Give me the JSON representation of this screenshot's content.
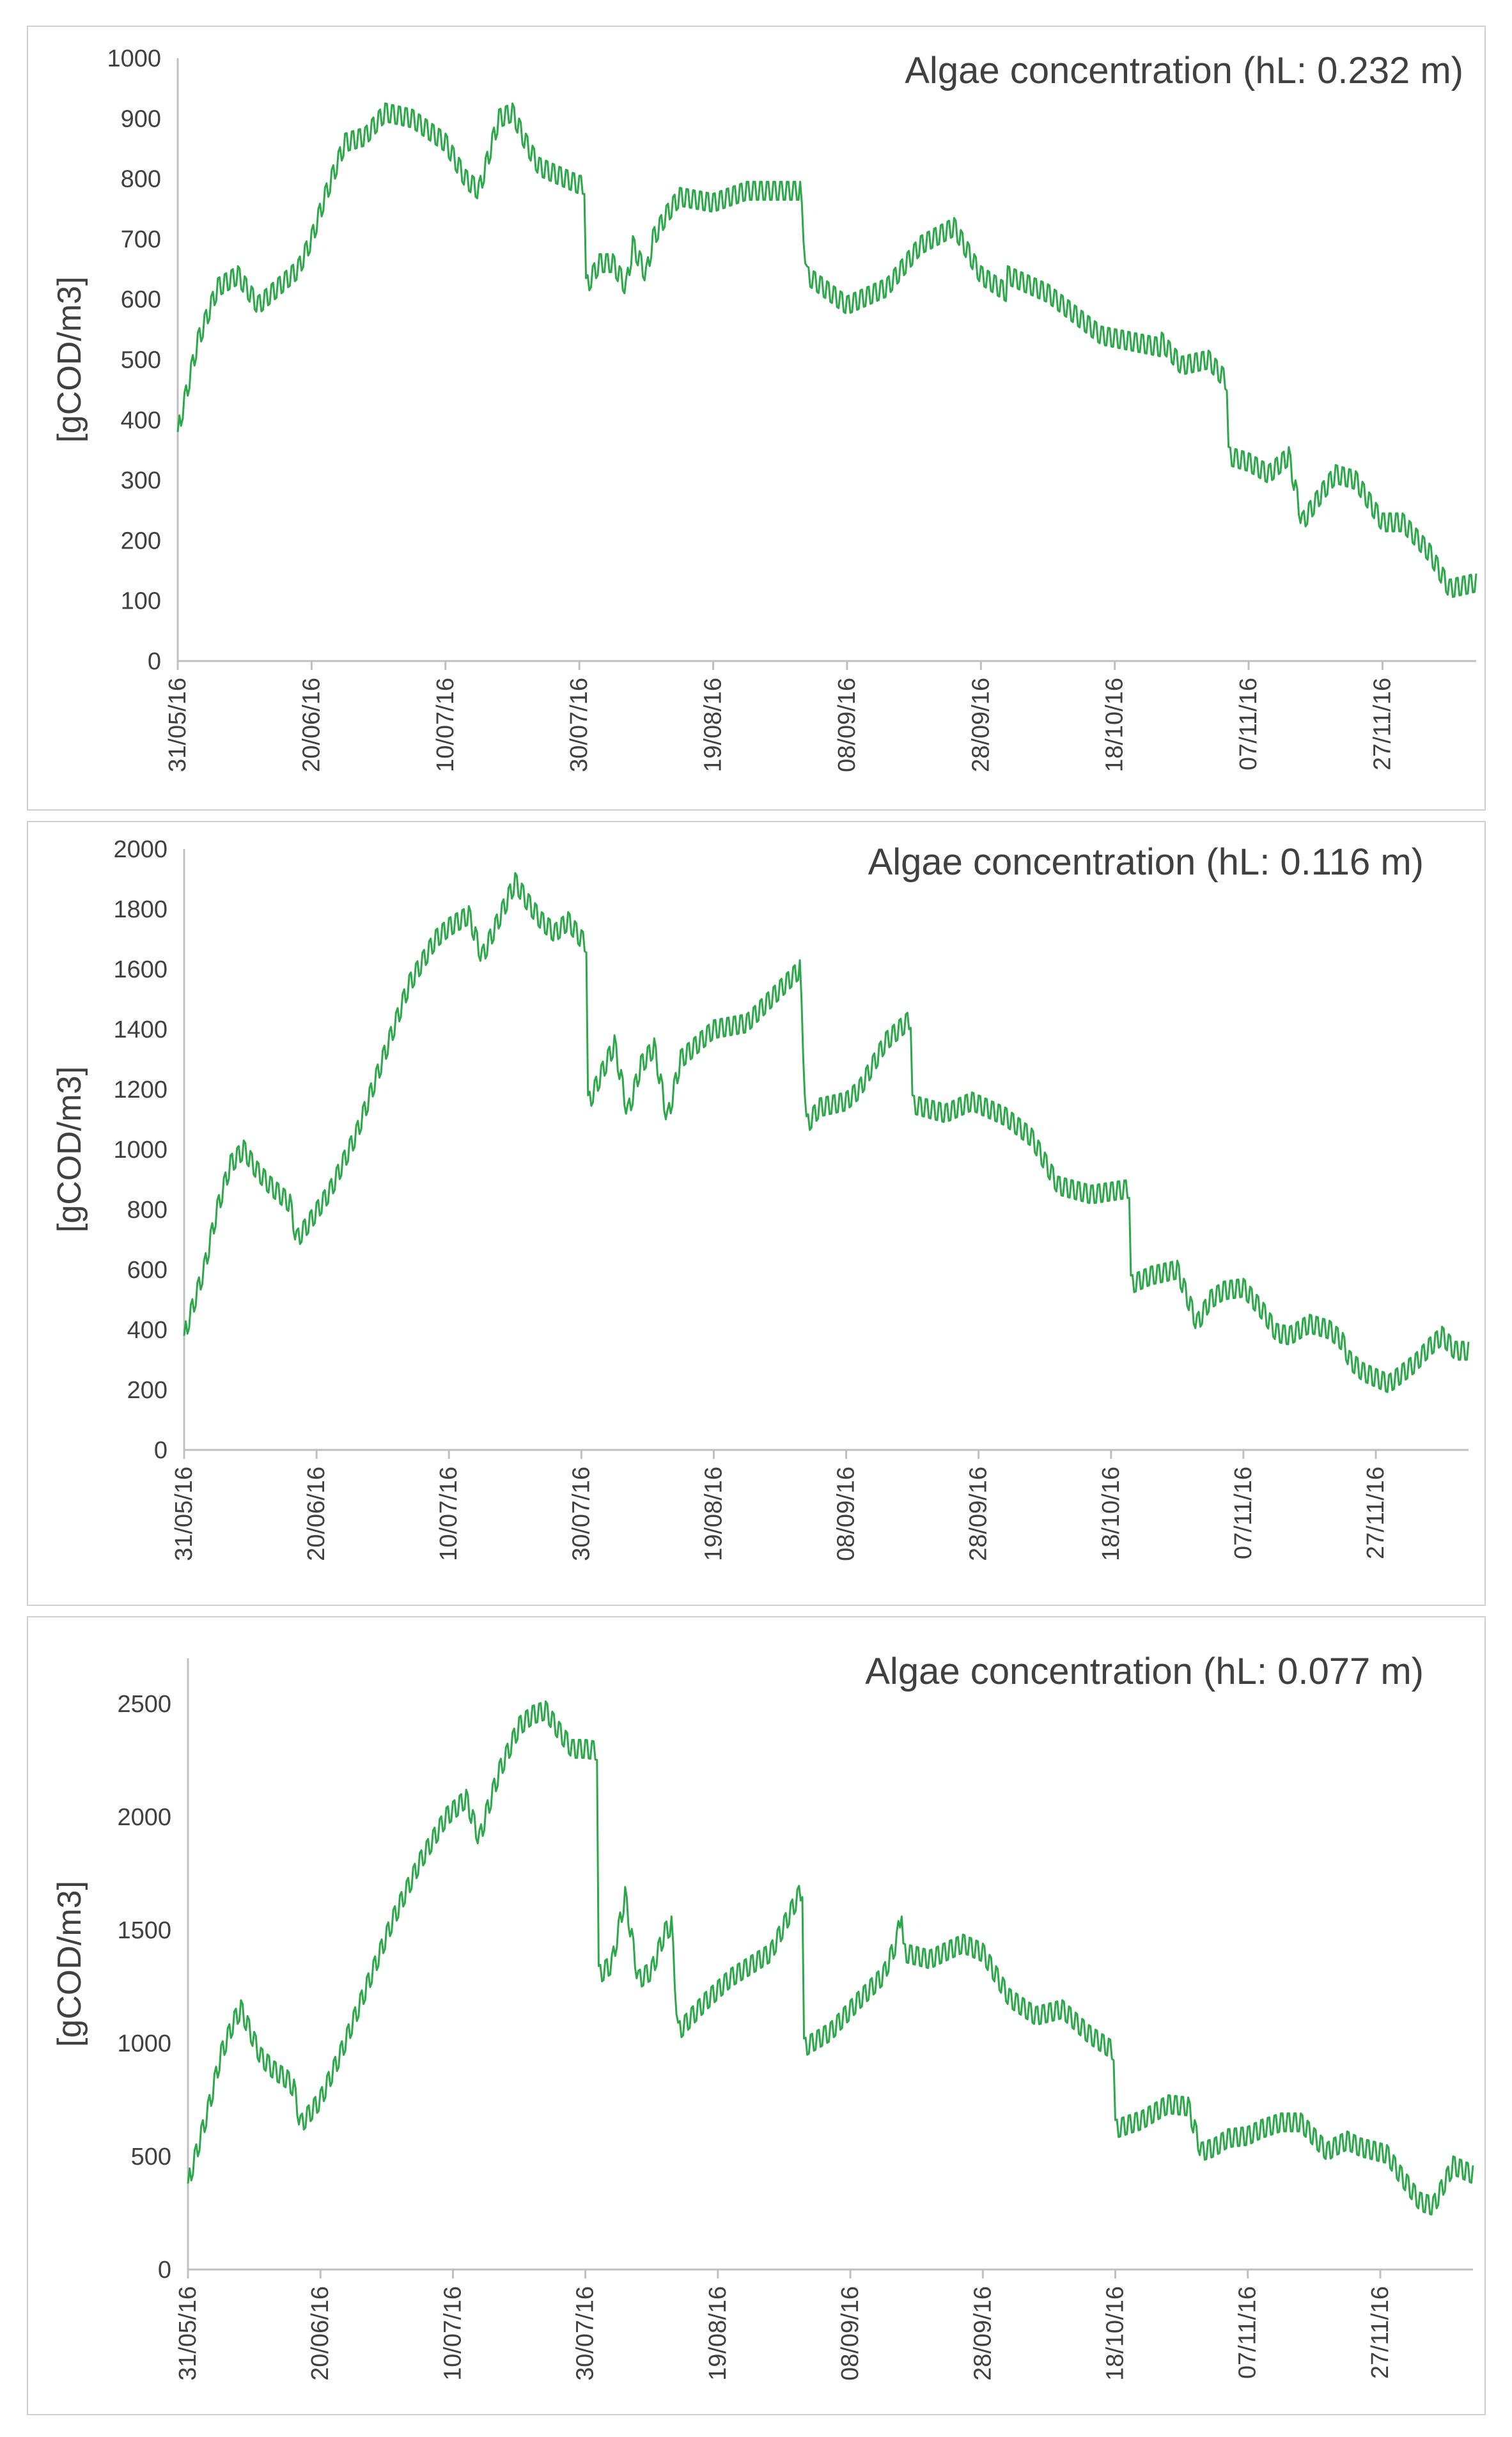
{
  "line_color": "#2ca84a",
  "axis_color": "#bfbfbf",
  "text_color": "#404040",
  "chart_data": [
    {
      "type": "line",
      "title": "Algae concentration (hL: 0.232 m)",
      "ylabel": "[gCOD/m3]",
      "xlabel": "",
      "ylim": [
        0,
        1000
      ],
      "yticks": [
        "0",
        "100",
        "200",
        "300",
        "400",
        "500",
        "600",
        "700",
        "800",
        "900",
        "1000"
      ],
      "xtick_labels": [
        "31/05/16",
        "20/06/16",
        "10/07/16",
        "30/07/16",
        "19/08/16",
        "08/09/16",
        "28/09/16",
        "18/10/16",
        "07/11/16",
        "27/11/16"
      ],
      "x_range_days": [
        0,
        194
      ],
      "series": [
        {
          "name": "Algae concentration",
          "oscillation": 30,
          "x": [
            0,
            3,
            6,
            9,
            12,
            15,
            18,
            20,
            22,
            25,
            28,
            31,
            35,
            40,
            43,
            45,
            48,
            50,
            52,
            54,
            56,
            58,
            60,
            61,
            61,
            63,
            65,
            67,
            68,
            70,
            71,
            73,
            75,
            80,
            85,
            93,
            94,
            100,
            106,
            111,
            116,
            120,
            124,
            124,
            130,
            138,
            147,
            147,
            150,
            154,
            157,
            157,
            160,
            163,
            166,
            168,
            171,
            173,
            176,
            180,
            183,
            187,
            190,
            194
          ],
          "y": [
            380,
            530,
            620,
            640,
            590,
            620,
            650,
            700,
            770,
            860,
            870,
            910,
            900,
            860,
            800,
            780,
            900,
            910,
            860,
            820,
            810,
            800,
            790,
            790,
            620,
            660,
            660,
            620,
            690,
            640,
            700,
            740,
            770,
            760,
            780,
            780,
            640,
            590,
            620,
            690,
            720,
            640,
            610,
            640,
            610,
            540,
            520,
            530,
            490,
            500,
            460,
            340,
            330,
            310,
            340,
            230,
            280,
            310,
            300,
            230,
            230,
            180,
            120,
            130
          ]
        }
      ]
    },
    {
      "type": "line",
      "title": "Algae concentration (hL: 0.116 m)",
      "ylabel": "[gCOD/m3]",
      "xlabel": "",
      "ylim": [
        0,
        2000
      ],
      "yticks": [
        "0",
        "200",
        "400",
        "600",
        "800",
        "1000",
        "1200",
        "1400",
        "1600",
        "1800",
        "2000"
      ],
      "xtick_labels": [
        "31/05/16",
        "20/06/16",
        "10/07/16",
        "30/07/16",
        "19/08/16",
        "08/09/16",
        "28/09/16",
        "18/10/16",
        "07/11/16",
        "27/11/16"
      ],
      "x_range_days": [
        0,
        194
      ],
      "series": [
        {
          "name": "Algae concentration",
          "oscillation": 60,
          "x": [
            0,
            3,
            5,
            7,
            9,
            11,
            13,
            15,
            16,
            17,
            19,
            22,
            26,
            30,
            34,
            38,
            40,
            43,
            45,
            48,
            50,
            52,
            54,
            56,
            58,
            60,
            61,
            61,
            63,
            65,
            67,
            69,
            71,
            73,
            75,
            80,
            85,
            93,
            94,
            96,
            100,
            102,
            106,
            110,
            110,
            115,
            119,
            124,
            128,
            132,
            137,
            143,
            143,
            146,
            150,
            153,
            155,
            157,
            160,
            163,
            165,
            167,
            170,
            173,
            175,
            176,
            178,
            182,
            186,
            188,
            190,
            192,
            194
          ],
          "y": [
            380,
            600,
            800,
            950,
            1000,
            930,
            880,
            840,
            820,
            700,
            760,
            860,
            1050,
            1300,
            1550,
            1700,
            1740,
            1780,
            1640,
            1790,
            1890,
            1820,
            1760,
            1720,
            1760,
            1700,
            1680,
            1150,
            1250,
            1350,
            1120,
            1280,
            1340,
            1100,
            1300,
            1400,
            1420,
            1600,
            1080,
            1140,
            1160,
            1200,
            1360,
            1440,
            1150,
            1120,
            1160,
            1110,
            1040,
            880,
            850,
            870,
            550,
            580,
            600,
            420,
            500,
            530,
            540,
            460,
            390,
            380,
            420,
            400,
            360,
            300,
            260,
            220,
            290,
            340,
            380,
            330,
            330
          ]
        }
      ]
    },
    {
      "type": "line",
      "title": "Algae concentration (hL: 0.077 m)",
      "ylabel": "[gCOD/m3]",
      "xlabel": "",
      "ylim": [
        0,
        2700
      ],
      "yticks": [
        "0",
        "500",
        "1000",
        "1500",
        "2000",
        "2500"
      ],
      "xtick_labels": [
        "31/05/16",
        "20/06/16",
        "10/07/16",
        "30/07/16",
        "19/08/16",
        "08/09/16",
        "28/09/16",
        "18/10/16",
        "07/11/16",
        "27/11/16"
      ],
      "x_range_days": [
        0,
        194
      ],
      "series": [
        {
          "name": "Algae concentration",
          "oscillation": 80,
          "x": [
            0,
            3,
            5,
            7,
            8,
            9,
            11,
            13,
            15,
            16,
            17,
            20,
            23,
            27,
            31,
            35,
            39,
            42,
            44,
            45,
            47,
            50,
            52,
            54,
            56,
            58,
            60,
            62,
            62,
            64,
            66,
            68,
            70,
            72,
            73,
            74,
            78,
            82,
            88,
            93,
            93,
            97,
            101,
            105,
            107,
            108,
            108,
            112,
            117,
            120,
            124,
            128,
            132,
            136,
            140,
            140,
            144,
            148,
            151,
            153,
            155,
            157,
            160,
            162,
            165,
            168,
            172,
            173,
            175,
            177,
            181,
            183,
            186,
            188,
            191,
            194
          ],
          "y": [
            380,
            700,
            950,
            1100,
            1150,
            1080,
            940,
            880,
            840,
            800,
            640,
            750,
            950,
            1250,
            1550,
            1800,
            2000,
            2080,
            1900,
            2010,
            2200,
            2400,
            2450,
            2470,
            2380,
            2300,
            2300,
            2290,
            1300,
            1350,
            1650,
            1280,
            1320,
            1490,
            1520,
            1050,
            1180,
            1290,
            1400,
            1700,
            980,
            1050,
            1180,
            1300,
            1450,
            1650,
            1400,
            1370,
            1440,
            1400,
            1200,
            1120,
            1150,
            1040,
            960,
            620,
            660,
            730,
            720,
            520,
            540,
            580,
            590,
            620,
            650,
            650,
            520,
            540,
            570,
            540,
            510,
            420,
            300,
            280,
            460,
            420
          ]
        }
      ]
    }
  ]
}
